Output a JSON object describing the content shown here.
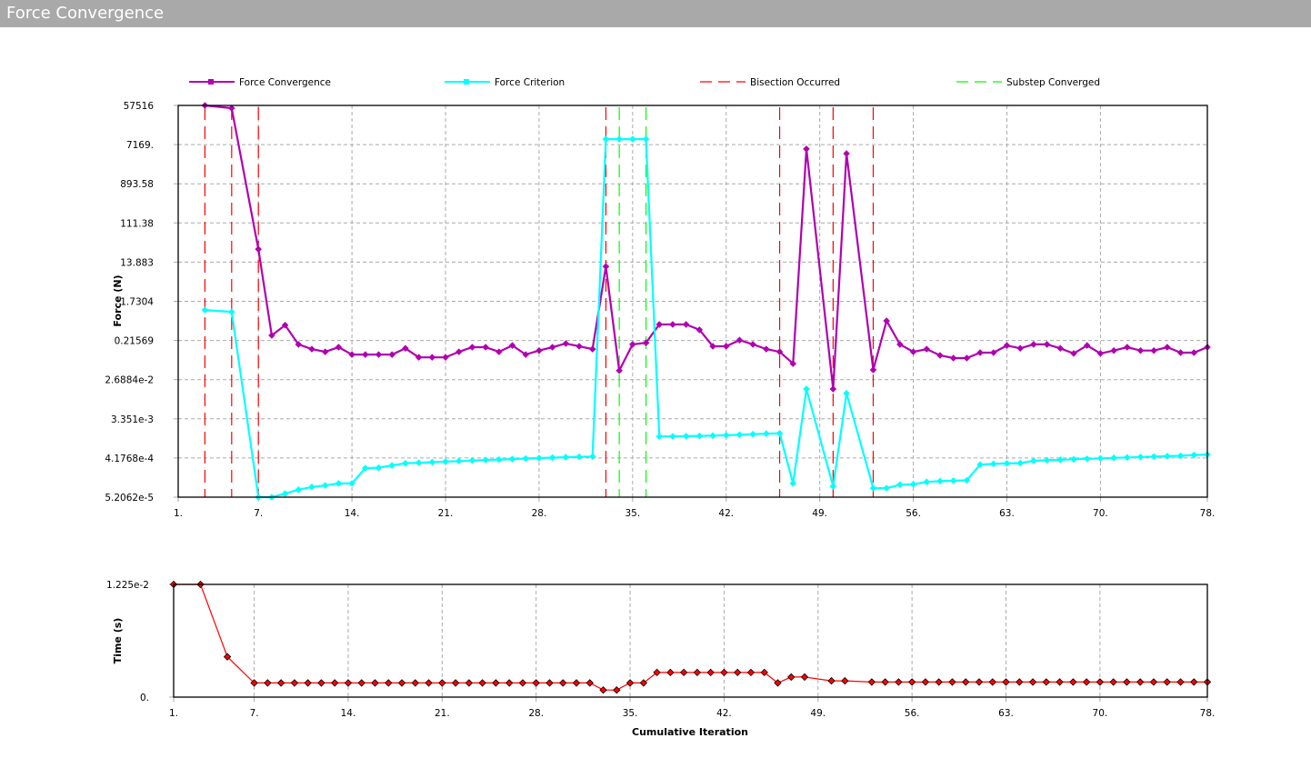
{
  "window": {
    "title": "Force Convergence"
  },
  "legend": [
    {
      "label": "Force Convergence",
      "color": "#b000b0",
      "style": "line-marker"
    },
    {
      "label": "Force Criterion",
      "color": "#00ffff",
      "style": "line-marker"
    },
    {
      "label": "Bisection Occurred",
      "color": "#ff0000",
      "style": "dashed"
    },
    {
      "label": "Substep Converged",
      "color": "#00ff00",
      "style": "dashed"
    }
  ],
  "chart_data": [
    {
      "type": "line",
      "title": "Force Convergence",
      "xlabel": "",
      "ylabel": "Force (N)",
      "yscale": "log",
      "ylim": [
        5.2062e-05,
        57516
      ],
      "xlim": [
        1,
        78
      ],
      "grid": true,
      "legend_position": "top",
      "x_ticks": [
        "1.",
        "7.",
        "14.",
        "21.",
        "28.",
        "35.",
        "42.",
        "49.",
        "56.",
        "63.",
        "70.",
        "78."
      ],
      "x_tick_values": [
        1,
        7,
        14,
        21,
        28,
        35,
        42,
        49,
        56,
        63,
        70,
        78
      ],
      "y_ticks": [
        "57516",
        "7169.",
        "893.58",
        "111.38",
        "13.883",
        "1.7304",
        "0.21569",
        "2.6884e-2",
        "3.351e-3",
        "4.1768e-4",
        "5.2062e-5"
      ],
      "y_tick_values": [
        57516,
        7169,
        893.58,
        111.38,
        13.883,
        1.7304,
        0.21569,
        0.026884,
        0.003351,
        0.00041768,
        5.2062e-05
      ],
      "x": [
        3,
        5,
        7,
        8,
        9,
        10,
        11,
        12,
        13,
        14,
        15,
        16,
        17,
        18,
        19,
        20,
        21,
        22,
        23,
        24,
        25,
        26,
        27,
        28,
        29,
        30,
        31,
        32,
        33,
        34,
        35,
        36,
        37,
        38,
        39,
        40,
        41,
        42,
        43,
        44,
        45,
        46,
        47,
        48,
        50,
        51,
        53,
        54,
        55,
        56,
        57,
        58,
        59,
        60,
        61,
        62,
        63,
        64,
        65,
        66,
        67,
        68,
        69,
        70,
        71,
        72,
        73,
        74,
        75,
        76,
        77,
        78
      ],
      "series": [
        {
          "name": "Force Convergence",
          "color": "#b000b0",
          "values": [
            57516,
            49800,
            27.6,
            0.283,
            0.486,
            0.175,
            0.136,
            0.118,
            0.151,
            0.102,
            0.102,
            0.102,
            0.102,
            0.142,
            0.088,
            0.088,
            0.088,
            0.118,
            0.151,
            0.151,
            0.118,
            0.165,
            0.102,
            0.126,
            0.151,
            0.183,
            0.158,
            0.136,
            11.0,
            0.0434,
            0.175,
            0.19,
            0.506,
            0.506,
            0.506,
            0.379,
            0.158,
            0.158,
            0.22,
            0.175,
            0.136,
            0.118,
            0.063,
            5700,
            0.0163,
            4440,
            0.0452,
            0.611,
            0.175,
            0.118,
            0.136,
            0.0977,
            0.0845,
            0.0845,
            0.113,
            0.113,
            0.165,
            0.142,
            0.175,
            0.175,
            0.142,
            0.108,
            0.165,
            0.108,
            0.126,
            0.151,
            0.126,
            0.126,
            0.151,
            0.113,
            0.113,
            0.151
          ]
        },
        {
          "name": "Force Criterion",
          "color": "#00ffff",
          "values": [
            1.09,
            0.986,
            5.21e-05,
            5.21e-05,
            6.28e-05,
            7.73e-05,
            8.95e-05,
            9.72e-05,
            0.000108,
            0.000108,
            0.000243,
            0.000249,
            0.000281,
            0.000315,
            0.000325,
            0.000335,
            0.000345,
            0.000355,
            0.000365,
            0.000375,
            0.000385,
            0.000395,
            0.000405,
            0.000415,
            0.000425,
            0.000435,
            0.000445,
            0.00045,
            9600,
            9600,
            9600,
            9600,
            0.00131,
            0.00132,
            0.00133,
            0.00135,
            0.00137,
            0.0014,
            0.00144,
            0.00148,
            0.00152,
            0.00155,
            0.000108,
            0.0163,
            9.3e-05,
            0.013,
            8.4e-05,
            8.4e-05,
            0.000101,
            0.000103,
            0.000117,
            0.000122,
            0.000125,
            0.000127,
            0.000293,
            0.000305,
            0.000313,
            0.000319,
            0.00036,
            0.00037,
            0.00038,
            0.00039,
            0.0004,
            0.00041,
            0.00042,
            0.00043,
            0.00044,
            0.00045,
            0.00046,
            0.00047,
            0.00049,
            0.0005
          ]
        }
      ],
      "vertical_markers": [
        {
          "name": "Bisection Occurred",
          "color": "#ff0000",
          "x": [
            3,
            5,
            7,
            33,
            46,
            50,
            53
          ]
        },
        {
          "name": "Substep Converged",
          "color": "#00ff00",
          "x": [
            34,
            36
          ]
        }
      ]
    },
    {
      "type": "line",
      "title": "",
      "xlabel": "Cumulative Iteration",
      "ylabel": "Time (s)",
      "yscale": "linear",
      "ylim": [
        0,
        0.01225
      ],
      "xlim": [
        1,
        78
      ],
      "grid": true,
      "x_ticks": [
        "1.",
        "7.",
        "14.",
        "21.",
        "28.",
        "35.",
        "42.",
        "49.",
        "56.",
        "63.",
        "70.",
        "78."
      ],
      "x_tick_values": [
        1,
        7,
        14,
        21,
        28,
        35,
        42,
        49,
        56,
        63,
        70,
        78
      ],
      "y_ticks": [
        "1.225e-2",
        "0."
      ],
      "y_tick_values": [
        0.01225,
        0
      ],
      "x": [
        1,
        3,
        5,
        7,
        8,
        9,
        10,
        11,
        12,
        13,
        14,
        15,
        16,
        17,
        18,
        19,
        20,
        21,
        22,
        23,
        24,
        25,
        26,
        27,
        28,
        29,
        30,
        31,
        32,
        33,
        34,
        35,
        36,
        37,
        38,
        39,
        40,
        41,
        42,
        43,
        44,
        45,
        46,
        47,
        48,
        50,
        51,
        53,
        54,
        55,
        56,
        57,
        58,
        59,
        60,
        61,
        62,
        63,
        64,
        65,
        66,
        67,
        68,
        69,
        70,
        71,
        72,
        73,
        74,
        75,
        76,
        77,
        78
      ],
      "series": [
        {
          "name": "Time",
          "color": "#ff0000",
          "values": [
            0.01225,
            0.01225,
            0.00438,
            0.00154,
            0.00154,
            0.00154,
            0.00154,
            0.00154,
            0.00154,
            0.00154,
            0.00154,
            0.00154,
            0.00154,
            0.00154,
            0.00154,
            0.00154,
            0.00154,
            0.00154,
            0.00154,
            0.00154,
            0.00154,
            0.00154,
            0.00154,
            0.00154,
            0.00154,
            0.00154,
            0.00154,
            0.00154,
            0.00154,
            0.00077,
            0.00077,
            0.00154,
            0.00154,
            0.00268,
            0.00268,
            0.00268,
            0.00268,
            0.00268,
            0.00268,
            0.00268,
            0.00268,
            0.00268,
            0.00154,
            0.00218,
            0.00218,
            0.00177,
            0.00177,
            0.00164,
            0.00164,
            0.00164,
            0.00164,
            0.00164,
            0.00164,
            0.00164,
            0.00164,
            0.00164,
            0.00164,
            0.00164,
            0.00164,
            0.00164,
            0.00164,
            0.00164,
            0.00164,
            0.00164,
            0.00164,
            0.00164,
            0.00164,
            0.00164,
            0.00164,
            0.00164,
            0.00164,
            0.00164,
            0.00164
          ]
        }
      ]
    }
  ]
}
